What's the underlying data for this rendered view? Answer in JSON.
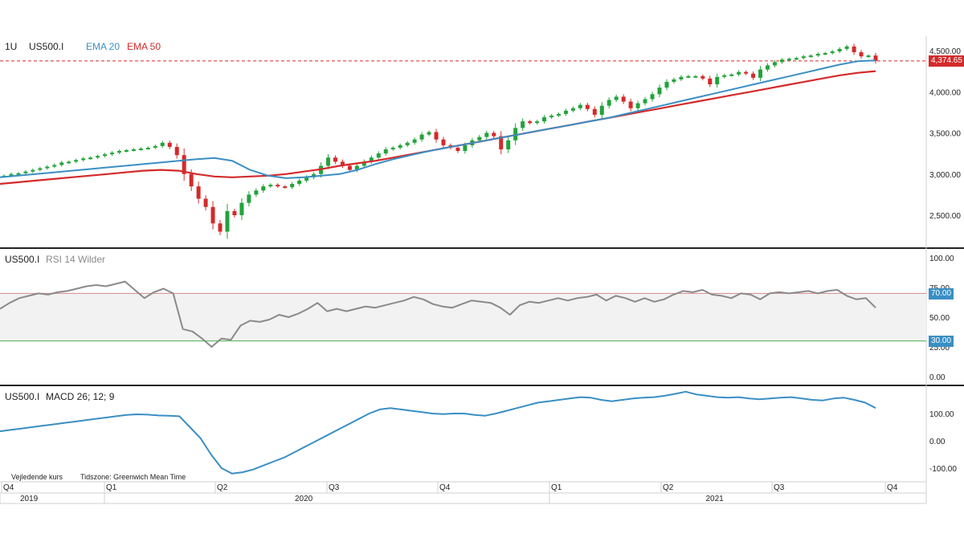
{
  "panels": {
    "price": {
      "timeframe": "1U",
      "symbol": "US500.I",
      "ema20_label": "EMA 20",
      "ema50_label": "EMA 50",
      "last_price_label": "4,374.65",
      "y_ticks": [
        "4,500.00",
        "4,000.00",
        "3,500.00",
        "3,000.00",
        "2,500.00"
      ]
    },
    "rsi": {
      "symbol": "US500.I",
      "indicator": "RSI 14 Wilder",
      "y_ticks": [
        "100.00",
        "75.00",
        "50.00",
        "25.00",
        "0.00"
      ],
      "upper_badge": "70.00",
      "lower_badge": "30.00"
    },
    "macd": {
      "symbol": "US500.I",
      "indicator": "MACD 26; 12; 9",
      "y_ticks": [
        "100.00",
        "0.00",
        "-100.00"
      ]
    }
  },
  "footer": {
    "note_left": "Vejledende kurs",
    "note_right": "Tidszone: Greenwich Mean Time"
  },
  "x_axis": {
    "quarters": [
      "Q4",
      "Q1",
      "Q2",
      "Q3",
      "Q4",
      "Q1",
      "Q2",
      "Q3",
      "Q4"
    ],
    "years": [
      "2019",
      "2020",
      "2021"
    ]
  },
  "colors": {
    "up": "#22a33a",
    "down": "#d42a2a",
    "ema20": "#3a8fc4",
    "ema50": "#d42a2a",
    "rsi_line": "#8a8a8a",
    "macd_line": "#3a8fc4",
    "rsi_upper": "#d48a8a",
    "rsi_lower": "#4caf50",
    "badge": "#3a8fc4"
  },
  "chart_data": [
    {
      "type": "candlestick",
      "title": "US500.I",
      "interval": "1U",
      "x_range": [
        "2019-10",
        "2021-09"
      ],
      "ylim": [
        2200,
        4550
      ],
      "last_price": 4374.65,
      "candles_close": [
        2980,
        3000,
        3010,
        3030,
        3050,
        3070,
        3090,
        3110,
        3140,
        3150,
        3170,
        3190,
        3200,
        3220,
        3240,
        3260,
        3280,
        3290,
        3300,
        3310,
        3320,
        3340,
        3380,
        3330,
        3230,
        3000,
        2850,
        2700,
        2600,
        2400,
        2300,
        2550,
        2500,
        2650,
        2750,
        2800,
        2850,
        2870,
        2850,
        2840,
        2880,
        2920,
        2960,
        3000,
        3100,
        3200,
        3150,
        3100,
        3050,
        3100,
        3150,
        3200,
        3250,
        3300,
        3320,
        3350,
        3380,
        3420,
        3480,
        3510,
        3420,
        3350,
        3320,
        3280,
        3350,
        3410,
        3450,
        3500,
        3460,
        3300,
        3410,
        3560,
        3640,
        3620,
        3640,
        3690,
        3710,
        3730,
        3770,
        3800,
        3840,
        3790,
        3720,
        3830,
        3900,
        3940,
        3880,
        3800,
        3860,
        3910,
        3970,
        4050,
        4120,
        4150,
        4180,
        4190,
        4190,
        4160,
        4090,
        4180,
        4200,
        4210,
        4240,
        4220,
        4170,
        4270,
        4320,
        4360,
        4390,
        4400,
        4410,
        4430,
        4440,
        4460,
        4470,
        4490,
        4520,
        4550,
        4480,
        4430,
        4440,
        4374.65
      ],
      "ema20": [
        2960,
        2980,
        3000,
        3020,
        3040,
        3060,
        3080,
        3100,
        3120,
        3140,
        3160,
        3180,
        3195,
        3160,
        3050,
        2980,
        2950,
        2960,
        2980,
        3000,
        3050,
        3120,
        3180,
        3230,
        3280,
        3320,
        3360,
        3400,
        3440,
        3480,
        3520,
        3560,
        3600,
        3640,
        3680,
        3730,
        3780,
        3830,
        3880,
        3930,
        3980,
        4030,
        4080,
        4130,
        4180,
        4230,
        4280,
        4330,
        4370,
        4380
      ],
      "ema50": [
        2880,
        2900,
        2920,
        2940,
        2960,
        2980,
        3000,
        3020,
        3040,
        3050,
        3040,
        3000,
        2970,
        2960,
        2970,
        2980,
        3000,
        3030,
        3060,
        3100,
        3130,
        3160,
        3200,
        3240,
        3280,
        3320,
        3360,
        3400,
        3440,
        3480,
        3520,
        3560,
        3600,
        3640,
        3680,
        3720,
        3760,
        3800,
        3840,
        3880,
        3920,
        3960,
        4000,
        4040,
        4080,
        4120,
        4160,
        4200,
        4230,
        4250
      ]
    },
    {
      "type": "line",
      "title": "RSI 14 Wilder",
      "ylim": [
        0,
        100
      ],
      "levels": [
        30,
        70
      ],
      "values": [
        57,
        62,
        66,
        68,
        70,
        69,
        71,
        72,
        74,
        76,
        77,
        76,
        78,
        80,
        73,
        66,
        71,
        74,
        70,
        40,
        38,
        32,
        25,
        32,
        31,
        43,
        47,
        46,
        48,
        52,
        50,
        53,
        57,
        62,
        55,
        57,
        55,
        57,
        59,
        58,
        60,
        62,
        64,
        67,
        65,
        61,
        59,
        58,
        61,
        64,
        63,
        62,
        58,
        52,
        60,
        63,
        62,
        64,
        66,
        64,
        66,
        67,
        69,
        64,
        68,
        66,
        63,
        66,
        63,
        65,
        69,
        72,
        71,
        73,
        69,
        68,
        66,
        70,
        69,
        65,
        70,
        71,
        70,
        71,
        72,
        70,
        72,
        73,
        68,
        65,
        66,
        58
      ]
    },
    {
      "type": "line",
      "title": "MACD 26; 12; 9",
      "ylim": [
        -130,
        180
      ],
      "values": [
        35,
        40,
        45,
        50,
        55,
        60,
        65,
        70,
        75,
        80,
        85,
        90,
        95,
        97,
        96,
        93,
        92,
        90,
        50,
        10,
        -50,
        -100,
        -120,
        -115,
        -105,
        -90,
        -75,
        -60,
        -40,
        -20,
        0,
        20,
        40,
        60,
        80,
        100,
        115,
        120,
        115,
        110,
        105,
        100,
        98,
        100,
        100,
        95,
        92,
        100,
        110,
        120,
        130,
        140,
        145,
        150,
        155,
        160,
        158,
        150,
        145,
        150,
        155,
        158,
        160,
        165,
        172,
        180,
        170,
        165,
        160,
        158,
        160,
        155,
        152,
        155,
        158,
        160,
        155,
        150,
        148,
        155,
        158,
        150,
        140,
        120
      ]
    }
  ]
}
